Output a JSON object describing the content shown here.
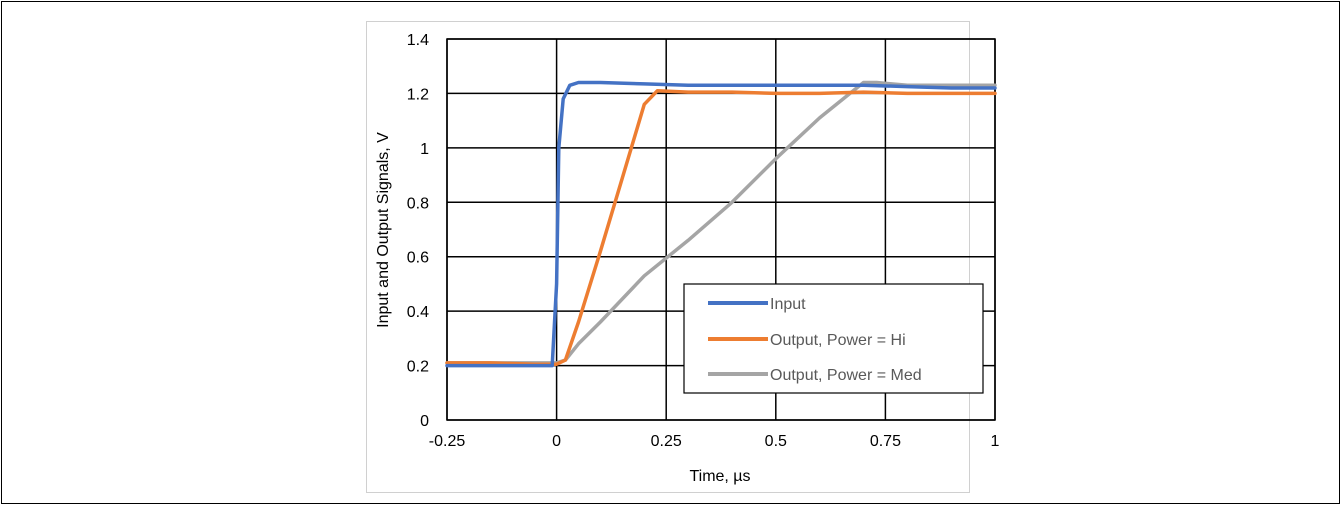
{
  "chart_data": {
    "type": "line",
    "xlabel": "Time, µs",
    "ylabel": "Input and Output Signals, V",
    "xlim": [
      -0.25,
      1
    ],
    "ylim": [
      0,
      1.4
    ],
    "xticks": [
      -0.25,
      0,
      0.25,
      0.5,
      0.75,
      1
    ],
    "xtick_labels": [
      "-0.25",
      "0",
      "0.25",
      "0.5",
      "0.75",
      "1"
    ],
    "yticks": [
      0,
      0.2,
      0.4,
      0.6,
      0.8,
      1,
      1.2,
      1.4
    ],
    "ytick_labels": [
      "0",
      "0.2",
      "0.4",
      "0.6",
      "0.8",
      "1",
      "1.2",
      "1.4"
    ],
    "grid": true,
    "legend_position": "bottom-right",
    "series": [
      {
        "name": "Input",
        "color": "#4472c4",
        "x": [
          -0.25,
          -0.2,
          -0.15,
          -0.1,
          -0.05,
          -0.01,
          0.0,
          0.005,
          0.015,
          0.03,
          0.05,
          0.1,
          0.2,
          0.3,
          0.4,
          0.5,
          0.6,
          0.7,
          0.8,
          0.9,
          1.0
        ],
        "y": [
          0.2,
          0.2,
          0.2,
          0.2,
          0.2,
          0.2,
          0.5,
          1.0,
          1.18,
          1.23,
          1.24,
          1.24,
          1.235,
          1.23,
          1.23,
          1.23,
          1.23,
          1.23,
          1.225,
          1.22,
          1.22
        ]
      },
      {
        "name": "Output, Power = Hi",
        "color": "#ed7d31",
        "x": [
          -0.25,
          -0.15,
          -0.05,
          0.0,
          0.02,
          0.05,
          0.1,
          0.15,
          0.2,
          0.23,
          0.3,
          0.4,
          0.5,
          0.6,
          0.7,
          0.8,
          0.9,
          1.0
        ],
        "y": [
          0.21,
          0.21,
          0.205,
          0.205,
          0.22,
          0.36,
          0.62,
          0.89,
          1.16,
          1.21,
          1.205,
          1.205,
          1.2,
          1.2,
          1.205,
          1.2,
          1.2,
          1.2
        ]
      },
      {
        "name": "Output, Power = Med",
        "color": "#a5a5a5",
        "x": [
          -0.25,
          -0.1,
          0.0,
          0.02,
          0.05,
          0.1,
          0.2,
          0.3,
          0.4,
          0.5,
          0.6,
          0.7,
          0.73,
          0.8,
          0.9,
          1.0
        ],
        "y": [
          0.21,
          0.21,
          0.21,
          0.22,
          0.28,
          0.36,
          0.53,
          0.66,
          0.8,
          0.96,
          1.11,
          1.24,
          1.24,
          1.23,
          1.23,
          1.23
        ]
      }
    ]
  }
}
